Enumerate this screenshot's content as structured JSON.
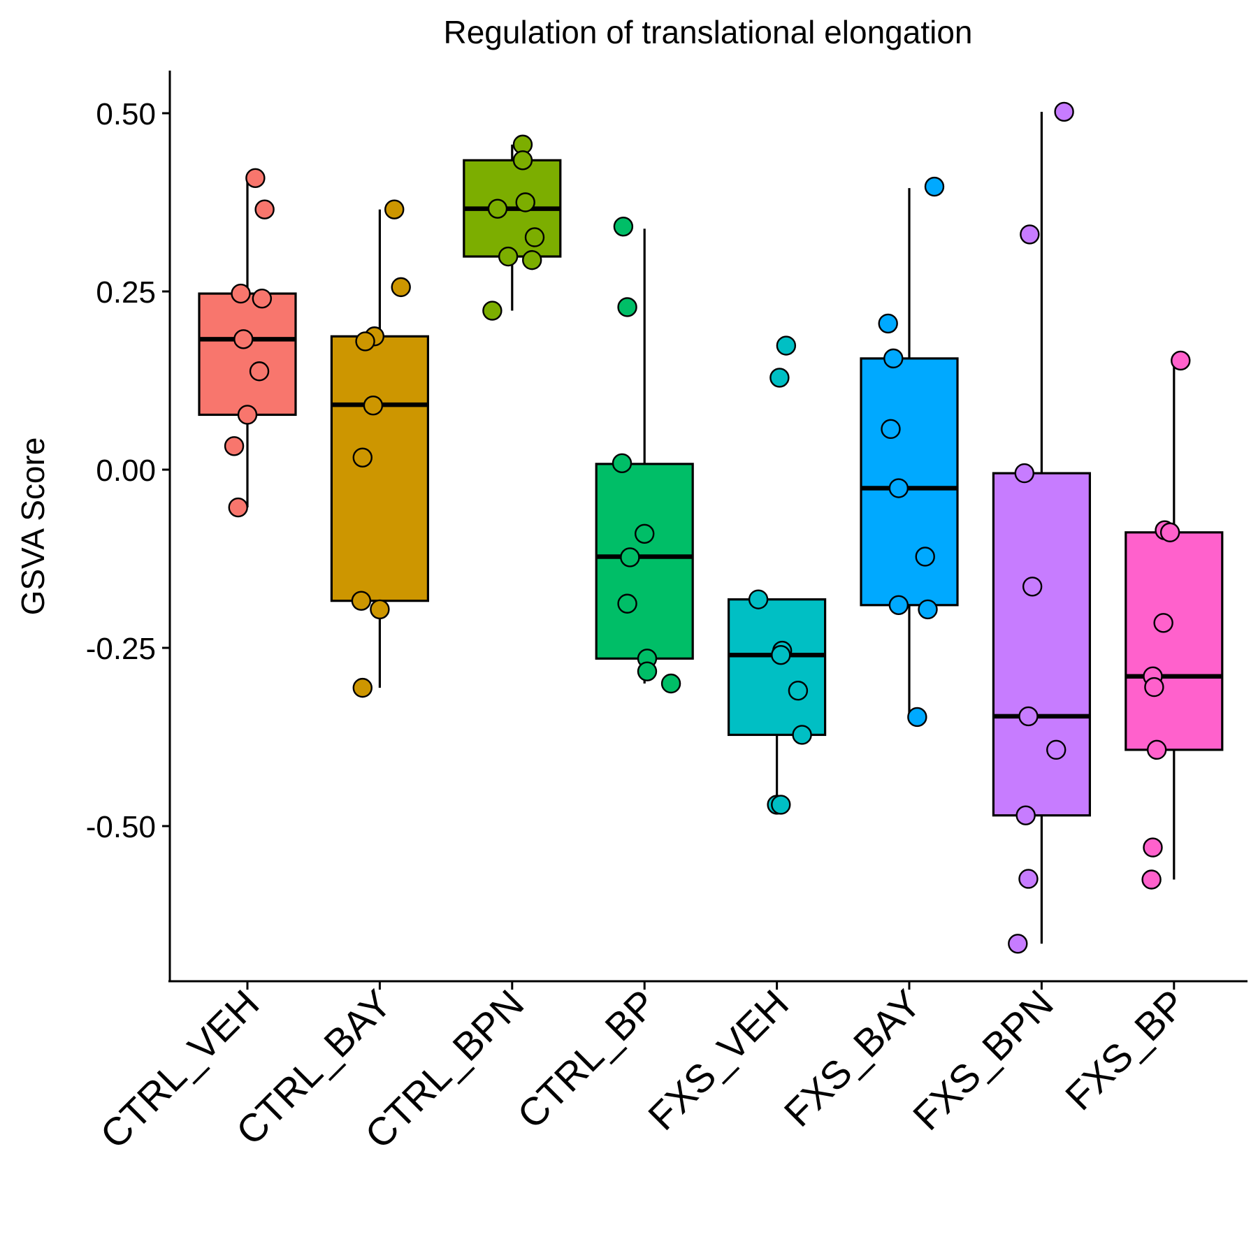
{
  "chart_data": {
    "type": "box",
    "title": "Regulation of translational elongation",
    "xlabel": "",
    "ylabel": "GSVA Score",
    "ylim": [
      -0.72,
      0.56
    ],
    "yticks": [
      0.5,
      0.25,
      0.0,
      -0.25,
      -0.5
    ],
    "ytick_labels": [
      "0.50",
      "0.25",
      "0.00",
      "-0.25",
      "-0.50"
    ],
    "grid": false,
    "legend": "none",
    "categories": [
      "CTRL_VEH",
      "CTRL_BAY",
      "CTRL_BPN",
      "CTRL_BP",
      "FXS_VEH",
      "FXS_BAY",
      "FXS_BPN",
      "FXS_BP"
    ],
    "colors": [
      "#F8766D",
      "#CD9600",
      "#7CAE00",
      "#00BE67",
      "#00BFC4",
      "#00A9FF",
      "#C77CFF",
      "#FF61CC"
    ],
    "boxes": [
      {
        "q1": 0.077,
        "median": 0.183,
        "q3": 0.247,
        "whisker_low": -0.053,
        "whisker_high": 0.409
      },
      {
        "q1": -0.184,
        "median": 0.091,
        "q3": 0.187,
        "whisker_low": -0.306,
        "whisker_high": 0.365
      },
      {
        "q1": 0.299,
        "median": 0.366,
        "q3": 0.434,
        "whisker_low": 0.223,
        "whisker_high": 0.456
      },
      {
        "q1": -0.265,
        "median": -0.122,
        "q3": 0.008,
        "whisker_low": -0.3,
        "whisker_high": 0.338
      },
      {
        "q1": -0.372,
        "median": -0.26,
        "q3": -0.182,
        "whisker_low": -0.47,
        "whisker_high": -0.182
      },
      {
        "q1": -0.19,
        "median": -0.026,
        "q3": 0.156,
        "whisker_low": -0.347,
        "whisker_high": 0.395
      },
      {
        "q1": -0.485,
        "median": -0.346,
        "q3": -0.005,
        "whisker_low": -0.665,
        "whisker_high": 0.502
      },
      {
        "q1": -0.393,
        "median": -0.29,
        "q3": -0.088,
        "whisker_low": -0.575,
        "whisker_high": 0.153
      }
    ],
    "points": [
      [
        {
          "x": 1.06,
          "y": 0.409
        },
        {
          "x": 1.13,
          "y": 0.365
        },
        {
          "x": 0.95,
          "y": 0.247
        },
        {
          "x": 1.11,
          "y": 0.24
        },
        {
          "x": 0.97,
          "y": 0.183
        },
        {
          "x": 1.09,
          "y": 0.138
        },
        {
          "x": 1.0,
          "y": 0.077
        },
        {
          "x": 0.9,
          "y": 0.033
        },
        {
          "x": 0.93,
          "y": -0.053
        }
      ],
      [
        {
          "x": 2.11,
          "y": 0.365
        },
        {
          "x": 2.16,
          "y": 0.256
        },
        {
          "x": 1.96,
          "y": 0.187
        },
        {
          "x": 1.89,
          "y": 0.18
        },
        {
          "x": 1.95,
          "y": 0.09
        },
        {
          "x": 1.87,
          "y": 0.017
        },
        {
          "x": 1.86,
          "y": -0.184
        },
        {
          "x": 2.0,
          "y": -0.196
        },
        {
          "x": 1.87,
          "y": -0.306
        }
      ],
      [
        {
          "x": 3.08,
          "y": 0.456
        },
        {
          "x": 3.08,
          "y": 0.434
        },
        {
          "x": 3.1,
          "y": 0.375
        },
        {
          "x": 2.89,
          "y": 0.366
        },
        {
          "x": 3.17,
          "y": 0.326
        },
        {
          "x": 2.97,
          "y": 0.299
        },
        {
          "x": 3.15,
          "y": 0.294
        },
        {
          "x": 2.85,
          "y": 0.223
        }
      ],
      [
        {
          "x": 3.84,
          "y": 0.341
        },
        {
          "x": 3.87,
          "y": 0.228
        },
        {
          "x": 3.83,
          "y": 0.009
        },
        {
          "x": 4.0,
          "y": -0.09
        },
        {
          "x": 3.89,
          "y": -0.123
        },
        {
          "x": 3.87,
          "y": -0.188
        },
        {
          "x": 4.02,
          "y": -0.265
        },
        {
          "x": 4.02,
          "y": -0.283
        },
        {
          "x": 4.2,
          "y": -0.3
        }
      ],
      [
        {
          "x": 5.07,
          "y": 0.174
        },
        {
          "x": 5.02,
          "y": 0.129
        },
        {
          "x": 4.86,
          "y": -0.182
        },
        {
          "x": 5.04,
          "y": -0.254
        },
        {
          "x": 5.03,
          "y": -0.26
        },
        {
          "x": 5.16,
          "y": -0.31
        },
        {
          "x": 5.19,
          "y": -0.372
        },
        {
          "x": 5.0,
          "y": -0.47
        },
        {
          "x": 5.03,
          "y": -0.47
        }
      ],
      [
        {
          "x": 6.19,
          "y": 0.397
        },
        {
          "x": 5.84,
          "y": 0.205
        },
        {
          "x": 5.88,
          "y": 0.156
        },
        {
          "x": 5.86,
          "y": 0.057
        },
        {
          "x": 5.92,
          "y": -0.026
        },
        {
          "x": 6.12,
          "y": -0.122
        },
        {
          "x": 5.92,
          "y": -0.19
        },
        {
          "x": 6.14,
          "y": -0.196
        },
        {
          "x": 6.06,
          "y": -0.347
        }
      ],
      [
        {
          "x": 7.17,
          "y": 0.502
        },
        {
          "x": 6.91,
          "y": 0.33
        },
        {
          "x": 6.87,
          "y": -0.005
        },
        {
          "x": 6.93,
          "y": -0.164
        },
        {
          "x": 6.9,
          "y": -0.346
        },
        {
          "x": 7.11,
          "y": -0.393
        },
        {
          "x": 6.88,
          "y": -0.485
        },
        {
          "x": 6.9,
          "y": -0.574
        },
        {
          "x": 6.82,
          "y": -0.665
        }
      ],
      [
        {
          "x": 8.05,
          "y": 0.153
        },
        {
          "x": 7.93,
          "y": -0.085
        },
        {
          "x": 7.97,
          "y": -0.088
        },
        {
          "x": 7.92,
          "y": -0.215
        },
        {
          "x": 7.84,
          "y": -0.29
        },
        {
          "x": 7.85,
          "y": -0.305
        },
        {
          "x": 7.87,
          "y": -0.393
        },
        {
          "x": 7.84,
          "y": -0.53
        },
        {
          "x": 7.83,
          "y": -0.575
        }
      ]
    ]
  }
}
